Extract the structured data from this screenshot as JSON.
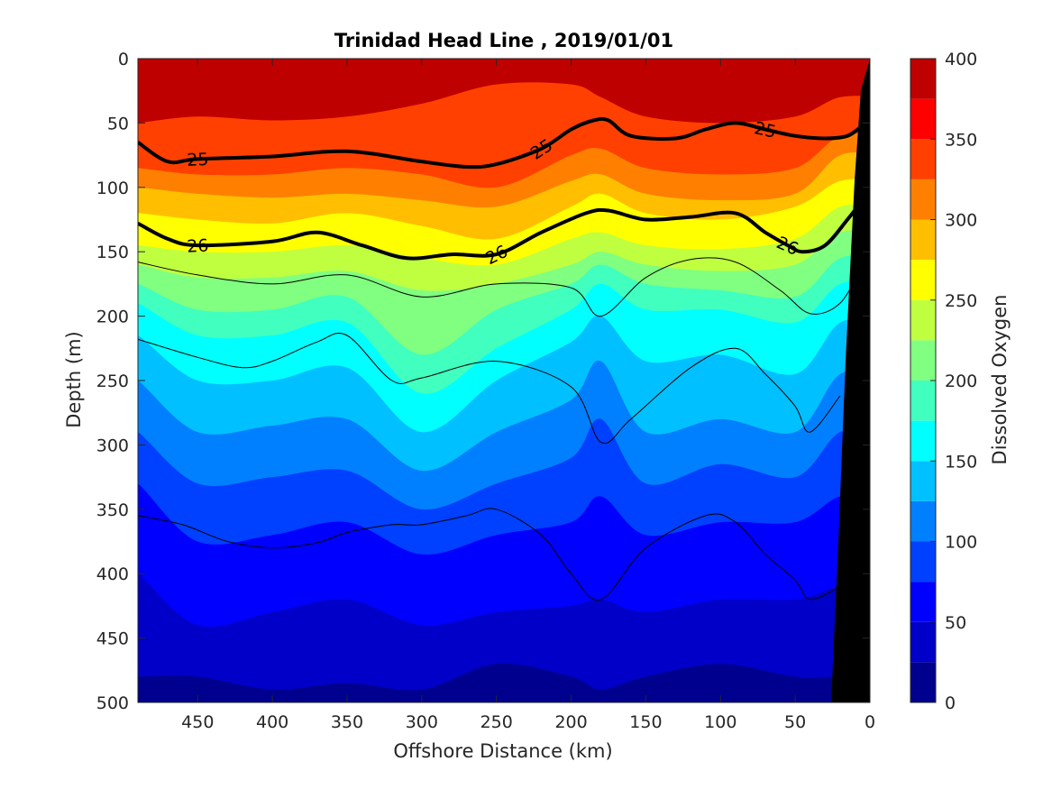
{
  "chart_data": {
    "type": "contour",
    "title": "Trinidad Head Line , 2019/01/01",
    "xlabel": "Offshore Distance (km)",
    "ylabel": "Depth (m)",
    "xlim": [
      490,
      0
    ],
    "ylim": [
      0,
      500
    ],
    "x_ticks": [
      450,
      400,
      350,
      300,
      250,
      200,
      150,
      100,
      50,
      0
    ],
    "y_ticks": [
      0,
      50,
      100,
      150,
      200,
      250,
      300,
      350,
      400,
      450,
      500
    ],
    "colorbar": {
      "label": "Dissolved Oxygen",
      "ticks": [
        0,
        50,
        100,
        150,
        200,
        250,
        300,
        350,
        400
      ],
      "levels": [
        0,
        25,
        50,
        75,
        100,
        125,
        150,
        175,
        200,
        225,
        250,
        275,
        300,
        325,
        350,
        375,
        400
      ],
      "colors": [
        "#00008f",
        "#0000c8",
        "#0000ff",
        "#0040ff",
        "#0080ff",
        "#00c0ff",
        "#00ffff",
        "#40ffbf",
        "#80ff80",
        "#bfff40",
        "#ffff00",
        "#ffbf00",
        "#ff8000",
        "#ff4000",
        "#ff0000",
        "#bf0000"
      ]
    },
    "oxygen_level_depths": {
      "x": [
        490,
        450,
        400,
        350,
        300,
        250,
        200,
        180,
        150,
        100,
        50,
        20
      ],
      "levels": [
        {
          "value": 350,
          "depth": [
            50,
            45,
            48,
            45,
            35,
            20,
            20,
            30,
            45,
            50,
            45,
            30
          ]
        },
        {
          "value": 325,
          "depth": [
            85,
            90,
            90,
            85,
            90,
            100,
            75,
            70,
            85,
            90,
            85,
            60
          ]
        },
        {
          "value": 300,
          "depth": [
            100,
            105,
            108,
            105,
            110,
            115,
            95,
            90,
            105,
            110,
            105,
            75
          ]
        },
        {
          "value": 275,
          "depth": [
            120,
            125,
            128,
            120,
            130,
            140,
            115,
            105,
            120,
            125,
            115,
            95
          ]
        },
        {
          "value": 250,
          "depth": [
            145,
            150,
            150,
            145,
            155,
            160,
            140,
            135,
            145,
            148,
            140,
            115
          ]
        },
        {
          "value": 225,
          "depth": [
            160,
            170,
            170,
            165,
            180,
            175,
            160,
            150,
            160,
            165,
            160,
            135
          ]
        },
        {
          "value": 200,
          "depth": [
            175,
            195,
            195,
            185,
            230,
            195,
            175,
            160,
            175,
            180,
            185,
            155
          ]
        },
        {
          "value": 175,
          "depth": [
            190,
            215,
            215,
            205,
            260,
            225,
            195,
            175,
            195,
            195,
            205,
            175
          ]
        },
        {
          "value": 150,
          "depth": [
            215,
            250,
            250,
            240,
            290,
            250,
            220,
            200,
            235,
            230,
            245,
            205
          ]
        },
        {
          "value": 125,
          "depth": [
            250,
            290,
            285,
            280,
            320,
            290,
            265,
            235,
            290,
            280,
            290,
            245
          ]
        },
        {
          "value": 100,
          "depth": [
            290,
            330,
            325,
            320,
            350,
            330,
            310,
            280,
            330,
            315,
            325,
            290
          ]
        },
        {
          "value": 75,
          "depth": [
            330,
            375,
            370,
            360,
            385,
            370,
            360,
            340,
            370,
            360,
            360,
            340
          ]
        },
        {
          "value": 50,
          "depth": [
            400,
            440,
            430,
            420,
            440,
            430,
            425,
            420,
            430,
            420,
            420,
            410
          ]
        },
        {
          "value": 25,
          "depth": [
            480,
            480,
            490,
            485,
            490,
            470,
            480,
            490,
            480,
            470,
            480,
            480
          ]
        }
      ]
    },
    "density_contours": [
      {
        "label": "25",
        "labeled": true,
        "x": [
          490,
          470,
          450,
          400,
          350,
          300,
          270,
          250,
          220,
          200,
          185,
          175,
          160,
          130,
          110,
          90,
          70,
          50,
          30,
          15,
          5
        ],
        "depth": [
          65,
          80,
          78,
          76,
          72,
          80,
          84,
          82,
          70,
          55,
          48,
          48,
          60,
          62,
          55,
          50,
          55,
          60,
          62,
          60,
          52
        ]
      },
      {
        "label": "26",
        "labeled": true,
        "x": [
          490,
          470,
          450,
          400,
          370,
          340,
          310,
          280,
          250,
          220,
          190,
          175,
          150,
          120,
          90,
          70,
          55,
          45,
          30,
          15,
          5
        ],
        "depth": [
          128,
          140,
          145,
          142,
          135,
          145,
          155,
          152,
          152,
          135,
          120,
          118,
          125,
          123,
          120,
          135,
          145,
          150,
          145,
          125,
          110
        ]
      },
      {
        "label": "",
        "labeled": false,
        "x": [
          490,
          450,
          400,
          350,
          300,
          250,
          200,
          180,
          150,
          120,
          90,
          60,
          40,
          20,
          5
        ],
        "depth": [
          158,
          168,
          175,
          168,
          185,
          175,
          178,
          200,
          170,
          156,
          158,
          180,
          198,
          190,
          160
        ]
      },
      {
        "label": "",
        "labeled": false,
        "x": [
          490,
          450,
          420,
          400,
          370,
          350,
          320,
          300,
          250,
          200,
          180,
          160,
          120,
          90,
          70,
          50,
          40,
          20
        ],
        "depth": [
          218,
          232,
          240,
          235,
          220,
          215,
          250,
          248,
          235,
          255,
          298,
          280,
          240,
          225,
          245,
          270,
          290,
          262
        ]
      },
      {
        "label": "",
        "labeled": false,
        "x": [
          490,
          460,
          430,
          400,
          370,
          350,
          320,
          300,
          270,
          250,
          220,
          200,
          180,
          150,
          110,
          90,
          70,
          50,
          40,
          20
        ],
        "depth": [
          355,
          362,
          375,
          380,
          376,
          368,
          362,
          362,
          355,
          350,
          370,
          400,
          420,
          380,
          355,
          360,
          385,
          405,
          420,
          410
        ]
      }
    ]
  }
}
